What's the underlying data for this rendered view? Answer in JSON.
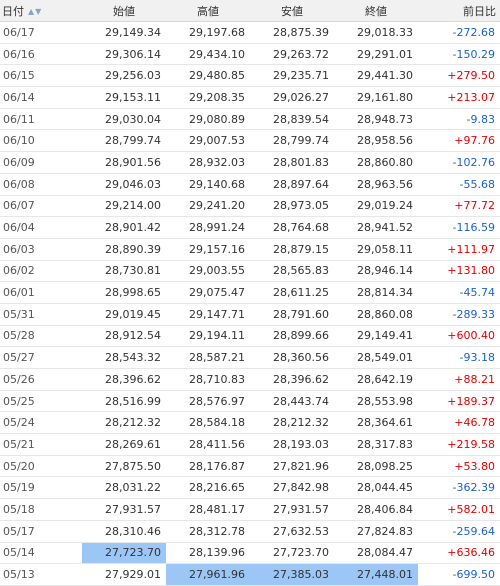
{
  "headers": {
    "date": "日付",
    "open": "始値",
    "high": "高値",
    "low": "安値",
    "close": "終値",
    "change": "前日比"
  },
  "sort_icons": [
    "sort-up-icon",
    "sort-down-icon"
  ],
  "colors": {
    "positive": "#e60000",
    "negative": "#1a63c9",
    "selected": "#9cc6f6"
  },
  "rows": [
    {
      "date": "06/17",
      "open": "29,149.34",
      "high": "29,197.68",
      "low": "28,875.39",
      "close": "29,018.33",
      "change": "-272.68"
    },
    {
      "date": "06/16",
      "open": "29,306.14",
      "high": "29,434.10",
      "low": "29,263.72",
      "close": "29,291.01",
      "change": "-150.29"
    },
    {
      "date": "06/15",
      "open": "29,256.03",
      "high": "29,480.85",
      "low": "29,235.71",
      "close": "29,441.30",
      "change": "+279.50"
    },
    {
      "date": "06/14",
      "open": "29,153.11",
      "high": "29,208.35",
      "low": "29,026.27",
      "close": "29,161.80",
      "change": "+213.07"
    },
    {
      "date": "06/11",
      "open": "29,030.04",
      "high": "29,080.89",
      "low": "28,839.54",
      "close": "28,948.73",
      "change": "-9.83"
    },
    {
      "date": "06/10",
      "open": "28,799.74",
      "high": "29,007.53",
      "low": "28,799.74",
      "close": "28,958.56",
      "change": "+97.76"
    },
    {
      "date": "06/09",
      "open": "28,901.56",
      "high": "28,932.03",
      "low": "28,801.83",
      "close": "28,860.80",
      "change": "-102.76"
    },
    {
      "date": "06/08",
      "open": "29,046.03",
      "high": "29,140.68",
      "low": "28,897.64",
      "close": "28,963.56",
      "change": "-55.68"
    },
    {
      "date": "06/07",
      "open": "29,214.00",
      "high": "29,241.20",
      "low": "28,973.05",
      "close": "29,019.24",
      "change": "+77.72"
    },
    {
      "date": "06/04",
      "open": "28,901.42",
      "high": "28,991.24",
      "low": "28,764.68",
      "close": "28,941.52",
      "change": "-116.59"
    },
    {
      "date": "06/03",
      "open": "28,890.39",
      "high": "29,157.16",
      "low": "28,879.15",
      "close": "29,058.11",
      "change": "+111.97"
    },
    {
      "date": "06/02",
      "open": "28,730.81",
      "high": "29,003.55",
      "low": "28,565.83",
      "close": "28,946.14",
      "change": "+131.80"
    },
    {
      "date": "06/01",
      "open": "28,998.65",
      "high": "29,075.47",
      "low": "28,611.25",
      "close": "28,814.34",
      "change": "-45.74"
    },
    {
      "date": "05/31",
      "open": "29,019.45",
      "high": "29,147.71",
      "low": "28,791.60",
      "close": "28,860.08",
      "change": "-289.33"
    },
    {
      "date": "05/28",
      "open": "28,912.54",
      "high": "29,194.11",
      "low": "28,899.66",
      "close": "29,149.41",
      "change": "+600.40"
    },
    {
      "date": "05/27",
      "open": "28,543.32",
      "high": "28,587.21",
      "low": "28,360.56",
      "close": "28,549.01",
      "change": "-93.18"
    },
    {
      "date": "05/26",
      "open": "28,396.62",
      "high": "28,710.83",
      "low": "28,396.62",
      "close": "28,642.19",
      "change": "+88.21"
    },
    {
      "date": "05/25",
      "open": "28,516.99",
      "high": "28,576.97",
      "low": "28,443.74",
      "close": "28,553.98",
      "change": "+189.37"
    },
    {
      "date": "05/24",
      "open": "28,212.32",
      "high": "28,584.18",
      "low": "28,212.32",
      "close": "28,364.61",
      "change": "+46.78"
    },
    {
      "date": "05/21",
      "open": "28,269.61",
      "high": "28,411.56",
      "low": "28,193.03",
      "close": "28,317.83",
      "change": "+219.58"
    },
    {
      "date": "05/20",
      "open": "27,875.50",
      "high": "28,176.87",
      "low": "27,821.96",
      "close": "28,098.25",
      "change": "+53.80"
    },
    {
      "date": "05/19",
      "open": "28,031.22",
      "high": "28,216.65",
      "low": "27,842.98",
      "close": "28,044.45",
      "change": "-362.39"
    },
    {
      "date": "05/18",
      "open": "27,931.57",
      "high": "28,481.17",
      "low": "27,931.57",
      "close": "28,406.84",
      "change": "+582.01"
    },
    {
      "date": "05/17",
      "open": "28,310.46",
      "high": "28,312.78",
      "low": "27,632.53",
      "close": "27,824.83",
      "change": "-259.64"
    },
    {
      "date": "05/14",
      "open": "27,723.70",
      "high": "28,139.96",
      "low": "27,723.70",
      "close": "28,084.47",
      "change": "+636.46"
    },
    {
      "date": "05/13",
      "open": "27,929.01",
      "high": "27,961.96",
      "low": "27,385.03",
      "close": "27,448.01",
      "change": "-699.50"
    }
  ],
  "selected_cells": [
    {
      "row": 24,
      "col": "open"
    },
    {
      "row": 25,
      "col": "high"
    },
    {
      "row": 25,
      "col": "low"
    },
    {
      "row": 25,
      "col": "close"
    }
  ]
}
